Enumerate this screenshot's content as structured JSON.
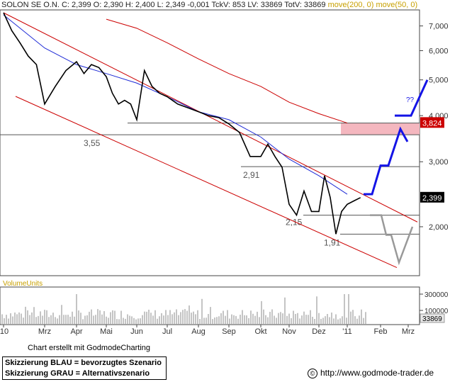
{
  "header": {
    "symbol": "SOLON SE O.N.",
    "close": "C: 2,399",
    "open": "O: 2,390",
    "high": "H: 2,400",
    "low": "L: 2,349",
    "change": "-0,001",
    "tick_volume": "TckV: 853",
    "last_volume": "LV: 33869",
    "total_volume": "TotV: 33869",
    "ma200_label": "move(200, 0)",
    "ma50_label": "move(50, 0)"
  },
  "chart_data": {
    "type": "line",
    "title": "SOLON SE O.N.",
    "yscale": "log",
    "ylim": [
      1.5,
      7.6
    ],
    "y_ticks": [
      2.0,
      3.0,
      4.0,
      5.0,
      6.0,
      7.0
    ],
    "y_tick_labels": [
      "2,000",
      "3,000",
      "4,000",
      "5,000",
      "6,000",
      "7,000"
    ],
    "x_tick_labels": [
      "'10",
      "Mrz",
      "Apr",
      "Mai",
      "Jun",
      "Jul",
      "Aug",
      "Sep",
      "Okt",
      "Nov",
      "Dez",
      "'11",
      "Feb",
      "Mrz"
    ],
    "price_series": {
      "name": "SOLON SE O.N.",
      "points": [
        [
          "'10",
          7.6
        ],
        [
          "'10",
          6.8
        ],
        [
          "'10",
          6.3
        ],
        [
          "'10",
          5.8
        ],
        [
          "'10",
          5.5
        ],
        [
          "Mrz",
          4.3
        ],
        [
          "Mrz",
          4.8
        ],
        [
          "Mrz",
          5.3
        ],
        [
          "Apr",
          5.6
        ],
        [
          "Apr",
          5.2
        ],
        [
          "Apr",
          5.5
        ],
        [
          "Apr",
          5.4
        ],
        [
          "Mai",
          5.1
        ],
        [
          "Mai",
          4.6
        ],
        [
          "Mai",
          4.3
        ],
        [
          "Mai",
          4.4
        ],
        [
          "Mai",
          4.3
        ],
        [
          "Jun",
          3.9
        ],
        [
          "Jun",
          5.3
        ],
        [
          "Jun",
          4.8
        ],
        [
          "Jun",
          4.6
        ],
        [
          "Jul",
          4.5
        ],
        [
          "Jul",
          4.3
        ],
        [
          "Jul",
          4.2
        ],
        [
          "Aug",
          4.1
        ],
        [
          "Aug",
          4.0
        ],
        [
          "Aug",
          3.95
        ],
        [
          "Sep",
          3.8
        ],
        [
          "Sep",
          3.6
        ],
        [
          "Sep",
          3.1
        ],
        [
          "Okt",
          3.1
        ],
        [
          "Okt",
          3.35
        ],
        [
          "Okt",
          3.1
        ],
        [
          "Okt",
          2.9
        ],
        [
          "Nov",
          2.3
        ],
        [
          "Nov",
          2.15
        ],
        [
          "Nov",
          2.5
        ],
        [
          "Nov",
          2.2
        ],
        [
          "Dez",
          2.2
        ],
        [
          "Dez",
          2.75
        ],
        [
          "Dez",
          2.4
        ],
        [
          "Dez",
          1.91
        ],
        [
          "Dez",
          2.2
        ],
        [
          "'11",
          2.3
        ],
        [
          "'11",
          2.35
        ],
        [
          "'11",
          2.399
        ]
      ]
    },
    "moving_averages": [
      {
        "name": "move(50, 0)",
        "color": "#1e2ad6",
        "points": [
          [
            "'10",
            7.5
          ],
          [
            "Mrz",
            6.1
          ],
          [
            "Apr",
            5.5
          ],
          [
            "Mai",
            5.2
          ],
          [
            "Jun",
            4.9
          ],
          [
            "Jul",
            4.5
          ],
          [
            "Aug",
            4.1
          ],
          [
            "Sep",
            3.9
          ],
          [
            "Okt",
            3.5
          ],
          [
            "Nov",
            3.05
          ],
          [
            "Dez",
            2.75
          ],
          [
            "'11",
            2.45
          ]
        ]
      },
      {
        "name": "move(200, 0)",
        "color": "#cc0000",
        "points": [
          [
            "Mai",
            7.3
          ],
          [
            "Jun",
            6.9
          ],
          [
            "Jul",
            6.3
          ],
          [
            "Aug",
            5.7
          ],
          [
            "Sep",
            5.2
          ],
          [
            "Okt",
            4.8
          ],
          [
            "Nov",
            4.35
          ],
          [
            "Dez",
            4.05
          ],
          [
            "'11",
            3.82
          ]
        ]
      }
    ],
    "channel_lines": [
      {
        "name": "upper",
        "from": [
          "'10",
          7.6
        ],
        "to": [
          "Mrz",
          2.06
        ]
      },
      {
        "name": "lower",
        "from": [
          "'10",
          5.2
        ],
        "to": [
          "Feb",
          1.55
        ]
      }
    ],
    "horizontal_levels": [
      3.82,
      3.55,
      2.91,
      2.15,
      1.91
    ],
    "level_labels": [
      "3,55",
      "2,91",
      "2,15",
      "1,91"
    ],
    "resistance_zone": [
      3.55,
      3.82
    ],
    "price_tags": [
      {
        "label": "3,824",
        "value": 3.824,
        "color": "#cc0000"
      },
      {
        "label": "2,399",
        "value": 2.399,
        "color": "#000000"
      }
    ],
    "scenario_blue": [
      [
        "'11",
        2.45
      ],
      [
        "'11",
        2.45
      ],
      [
        "Feb",
        2.93
      ],
      [
        "Feb",
        3.0
      ],
      [
        "Feb",
        3.68
      ],
      [
        "Feb",
        3.4
      ]
    ],
    "scenario_blue_2": [
      [
        "Feb",
        4.0
      ],
      [
        "Mrz",
        4.0
      ],
      [
        "Mrz",
        5.0
      ]
    ],
    "question_marks": "??",
    "scenario_gray": [
      [
        "'11",
        2.15
      ],
      [
        "Feb",
        1.9
      ],
      [
        "Feb",
        1.55
      ],
      [
        "Mrz",
        2.0
      ]
    ],
    "volume": {
      "label": "VolumeUnits",
      "ticks": [
        "300000",
        "100000"
      ],
      "last": "33869"
    }
  },
  "credit": "Chart erstellt mit GodmodeCharting",
  "legend": {
    "blue": "Skizzierung BLAU = bevorzugtes Szenario",
    "gray": "Skizzierung GRAU = Alternativszenario"
  },
  "url": "http://www.godmode-trader.de",
  "colors": {
    "blue": "#1414e6",
    "red": "#cc0000",
    "gray": "#999999",
    "zone": "#f4b7bf",
    "ma200_label": "#c8a000"
  }
}
